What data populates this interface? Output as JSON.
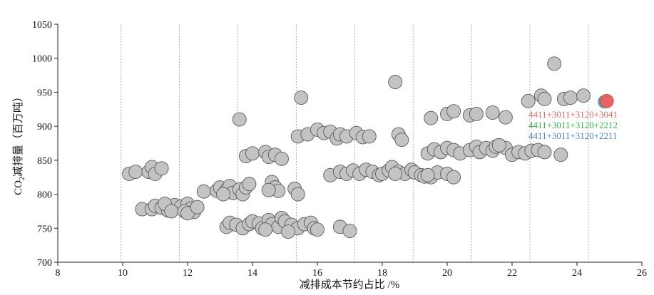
{
  "chart_data": {
    "type": "scatter",
    "title": "",
    "xlabel": "减排成本节约占比 /%",
    "ylabel": {
      "prefix": "CO",
      "subscript": "2",
      "suffix": "减排量（百万吨）"
    },
    "xlim": [
      8,
      26
    ],
    "ylim": [
      700,
      1050
    ],
    "xticks": [
      8,
      10,
      12,
      14,
      16,
      18,
      20,
      22,
      24,
      26
    ],
    "yticks": [
      700,
      750,
      800,
      850,
      900,
      950,
      1000,
      1050
    ],
    "vgrid_x": [
      9.95,
      11.75,
      13.55,
      15.35,
      17.15,
      18.95,
      20.75,
      22.55,
      24.35
    ],
    "grid": "vertical dashed",
    "point_color": "#c3c3c3",
    "points": [
      [
        10.2,
        830
      ],
      [
        10.4,
        833
      ],
      [
        10.8,
        833
      ],
      [
        10.9,
        840
      ],
      [
        11.0,
        830
      ],
      [
        11.2,
        838
      ],
      [
        10.6,
        778
      ],
      [
        10.9,
        778
      ],
      [
        11.0,
        783
      ],
      [
        11.2,
        780
      ],
      [
        11.4,
        776
      ],
      [
        11.6,
        784
      ],
      [
        11.8,
        782
      ],
      [
        12.0,
        786
      ],
      [
        12.1,
        779
      ],
      [
        11.3,
        786
      ],
      [
        11.5,
        775
      ],
      [
        11.9,
        775
      ],
      [
        12.2,
        774
      ],
      [
        12.0,
        772
      ],
      [
        12.3,
        781
      ],
      [
        12.5,
        804
      ],
      [
        12.9,
        805
      ],
      [
        13.0,
        810
      ],
      [
        13.2,
        806
      ],
      [
        13.3,
        812
      ],
      [
        13.4,
        802
      ],
      [
        13.6,
        807
      ],
      [
        13.7,
        800
      ],
      [
        13.8,
        810
      ],
      [
        13.9,
        815
      ],
      [
        13.1,
        800
      ],
      [
        13.2,
        752
      ],
      [
        13.3,
        758
      ],
      [
        13.5,
        755
      ],
      [
        13.7,
        750
      ],
      [
        13.9,
        756
      ],
      [
        14.0,
        760
      ],
      [
        14.2,
        757
      ],
      [
        14.3,
        750
      ],
      [
        14.5,
        762
      ],
      [
        14.6,
        756
      ],
      [
        14.8,
        752
      ],
      [
        14.9,
        765
      ],
      [
        15.0,
        760
      ],
      [
        15.2,
        755
      ],
      [
        15.4,
        750
      ],
      [
        15.6,
        756
      ],
      [
        15.8,
        758
      ],
      [
        15.9,
        750
      ],
      [
        16.0,
        748
      ],
      [
        14.4,
        748
      ],
      [
        15.1,
        745
      ],
      [
        16.7,
        752
      ],
      [
        17.0,
        746
      ],
      [
        13.6,
        910
      ],
      [
        13.8,
        856
      ],
      [
        14.0,
        860
      ],
      [
        14.4,
        862
      ],
      [
        14.5,
        855
      ],
      [
        14.7,
        858
      ],
      [
        14.9,
        852
      ],
      [
        14.6,
        818
      ],
      [
        14.7,
        810
      ],
      [
        14.8,
        805
      ],
      [
        14.5,
        806
      ],
      [
        15.3,
        808
      ],
      [
        15.4,
        800
      ],
      [
        15.5,
        942
      ],
      [
        15.4,
        885
      ],
      [
        15.7,
        888
      ],
      [
        16.0,
        895
      ],
      [
        16.2,
        890
      ],
      [
        16.4,
        892
      ],
      [
        16.6,
        882
      ],
      [
        16.7,
        888
      ],
      [
        16.9,
        885
      ],
      [
        17.2,
        890
      ],
      [
        17.4,
        884
      ],
      [
        17.6,
        885
      ],
      [
        16.4,
        828
      ],
      [
        16.7,
        833
      ],
      [
        16.9,
        830
      ],
      [
        17.1,
        835
      ],
      [
        17.3,
        830
      ],
      [
        17.5,
        836
      ],
      [
        17.7,
        833
      ],
      [
        17.9,
        828
      ],
      [
        18.0,
        830
      ],
      [
        18.2,
        835
      ],
      [
        18.3,
        840
      ],
      [
        18.5,
        833
      ],
      [
        18.7,
        830
      ],
      [
        18.9,
        836
      ],
      [
        19.0,
        832
      ],
      [
        19.2,
        828
      ],
      [
        19.3,
        826
      ],
      [
        19.5,
        825
      ],
      [
        19.7,
        832
      ],
      [
        20.0,
        830
      ],
      [
        20.2,
        825
      ],
      [
        18.4,
        830
      ],
      [
        19.4,
        828
      ],
      [
        18.5,
        888
      ],
      [
        18.6,
        880
      ],
      [
        18.4,
        965
      ],
      [
        19.4,
        860
      ],
      [
        19.6,
        866
      ],
      [
        19.8,
        862
      ],
      [
        20.0,
        868
      ],
      [
        20.2,
        865
      ],
      [
        20.4,
        860
      ],
      [
        20.7,
        865
      ],
      [
        20.9,
        870
      ],
      [
        21.0,
        862
      ],
      [
        21.2,
        868
      ],
      [
        21.4,
        864
      ],
      [
        21.5,
        870
      ],
      [
        21.8,
        868
      ],
      [
        22.0,
        858
      ],
      [
        22.2,
        862
      ],
      [
        22.4,
        860
      ],
      [
        22.6,
        864
      ],
      [
        22.8,
        865
      ],
      [
        23.0,
        862
      ],
      [
        21.6,
        872
      ],
      [
        19.5,
        912
      ],
      [
        20.0,
        918
      ],
      [
        20.2,
        922
      ],
      [
        20.7,
        916
      ],
      [
        20.9,
        918
      ],
      [
        21.4,
        920
      ],
      [
        21.8,
        913
      ],
      [
        22.5,
        937
      ],
      [
        22.9,
        945
      ],
      [
        23.0,
        940
      ],
      [
        23.3,
        992
      ],
      [
        23.6,
        940
      ],
      [
        23.8,
        942
      ],
      [
        24.2,
        945
      ],
      [
        23.5,
        858
      ]
    ],
    "highlighted": [
      {
        "x": 24.85,
        "y": 936,
        "color": "#6a8fd0"
      },
      {
        "x": 24.89,
        "y": 937,
        "color": "#4fae55"
      },
      {
        "x": 24.92,
        "y": 937,
        "color": "#e86464"
      }
    ],
    "annotations": [
      {
        "text": "4411+3011+3120+3041",
        "color": "#e86464"
      },
      {
        "text": "4411+3011+3120+2212",
        "color": "#35b34a"
      },
      {
        "text": "4411+3011+3120+2211",
        "color": "#4a86c8"
      }
    ]
  }
}
